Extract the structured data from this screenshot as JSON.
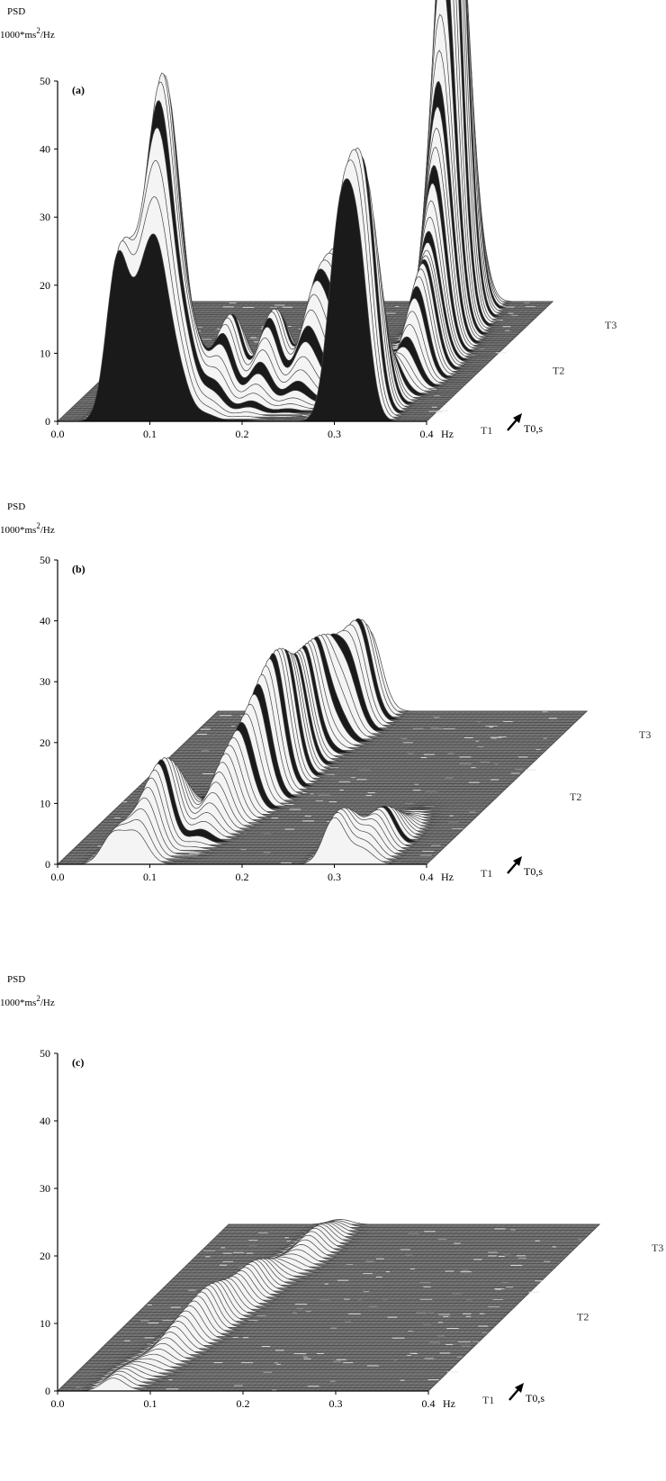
{
  "chart_data": [
    {
      "type": "area",
      "panel_label": "(a)",
      "ylabel_top": "PSD",
      "ylabel_unit_pre": "1000*ms",
      "ylabel_unit_sup": "2",
      "ylabel_unit_post": "/Hz",
      "xlabel": "Hz",
      "depth_labels": [
        "T1",
        "T2",
        "T3"
      ],
      "depth_axis_label": "T0,s",
      "xlim": [
        0,
        0.4
      ],
      "ylim": [
        0,
        50
      ],
      "x_ticks": [
        "0.0",
        "0.1",
        "0.2",
        "0.3",
        "0.4"
      ],
      "y_ticks": [
        "0",
        "10",
        "20",
        "30",
        "40",
        "50"
      ],
      "peaks": [
        {
          "freq": 0.065,
          "depth": 0.02,
          "height": 24
        },
        {
          "freq": 0.09,
          "depth": 0.1,
          "height": 22
        },
        {
          "freq": 0.1,
          "depth": 0.15,
          "height": 24
        },
        {
          "freq": 0.11,
          "depth": 0.05,
          "height": 20
        },
        {
          "freq": 0.13,
          "depth": 0.08,
          "height": 10
        },
        {
          "freq": 0.16,
          "depth": 0.2,
          "height": 12
        },
        {
          "freq": 0.2,
          "depth": 0.25,
          "height": 12
        },
        {
          "freq": 0.24,
          "depth": 0.3,
          "height": 14
        },
        {
          "freq": 0.26,
          "depth": 0.38,
          "height": 16
        },
        {
          "freq": 0.305,
          "depth": 0.02,
          "height": 27
        },
        {
          "freq": 0.325,
          "depth": 0.06,
          "height": 30
        },
        {
          "freq": 0.34,
          "depth": 0.4,
          "height": 14
        },
        {
          "freq": 0.33,
          "depth": 0.6,
          "height": 22
        },
        {
          "freq": 0.32,
          "depth": 0.75,
          "height": 32
        },
        {
          "freq": 0.315,
          "depth": 0.82,
          "height": 30
        },
        {
          "freq": 0.31,
          "depth": 0.88,
          "height": 34
        }
      ]
    },
    {
      "type": "area",
      "panel_label": "(b)",
      "ylabel_top": "PSD",
      "ylabel_unit_pre": "1000*ms",
      "ylabel_unit_sup": "2",
      "ylabel_unit_post": "/Hz",
      "xlabel": "Hz",
      "depth_labels": [
        "T1",
        "T2",
        "T3"
      ],
      "depth_axis_label": "T0,s",
      "xlim": [
        0,
        0.4
      ],
      "ylim": [
        0,
        50
      ],
      "x_ticks": [
        "0.0",
        "0.1",
        "0.2",
        "0.3",
        "0.4"
      ],
      "y_ticks": [
        "0",
        "10",
        "20",
        "30",
        "40",
        "50"
      ],
      "peaks": [
        {
          "freq": 0.06,
          "depth": 0.02,
          "height": 5
        },
        {
          "freq": 0.085,
          "depth": 0.1,
          "height": 8
        },
        {
          "freq": 0.09,
          "depth": 0.2,
          "height": 8
        },
        {
          "freq": 0.13,
          "depth": 0.3,
          "height": 9
        },
        {
          "freq": 0.14,
          "depth": 0.45,
          "height": 12
        },
        {
          "freq": 0.15,
          "depth": 0.55,
          "height": 14
        },
        {
          "freq": 0.14,
          "depth": 0.7,
          "height": 12
        },
        {
          "freq": 0.14,
          "depth": 0.85,
          "height": 11
        },
        {
          "freq": 0.16,
          "depth": 0.9,
          "height": 6
        },
        {
          "freq": 0.3,
          "depth": 0.03,
          "height": 8
        },
        {
          "freq": 0.33,
          "depth": 0.12,
          "height": 6
        },
        {
          "freq": 0.16,
          "depth": 0.98,
          "height": 5
        },
        {
          "freq": 0.17,
          "depth": 0.95,
          "height": 7
        }
      ]
    },
    {
      "type": "area",
      "panel_label": "(c)",
      "ylabel_top": "PSD",
      "ylabel_unit_pre": "1000*ms",
      "ylabel_unit_sup": "2",
      "ylabel_unit_post": "/Hz",
      "xlabel": "Hz",
      "depth_labels": [
        "T1",
        "T2",
        "T3"
      ],
      "depth_axis_label": "T0,s",
      "xlim": [
        0,
        0.4
      ],
      "ylim": [
        0,
        50
      ],
      "x_ticks": [
        "0.0",
        "0.1",
        "0.2",
        "0.3",
        "0.4"
      ],
      "y_ticks": [
        "0",
        "10",
        "20",
        "30",
        "40",
        "50"
      ],
      "peaks": [
        {
          "freq": 0.06,
          "depth": 0.03,
          "height": 2
        },
        {
          "freq": 0.08,
          "depth": 0.25,
          "height": 3
        },
        {
          "freq": 0.09,
          "depth": 0.4,
          "height": 5
        },
        {
          "freq": 0.1,
          "depth": 0.6,
          "height": 4
        },
        {
          "freq": 0.12,
          "depth": 0.85,
          "height": 3
        }
      ]
    }
  ]
}
